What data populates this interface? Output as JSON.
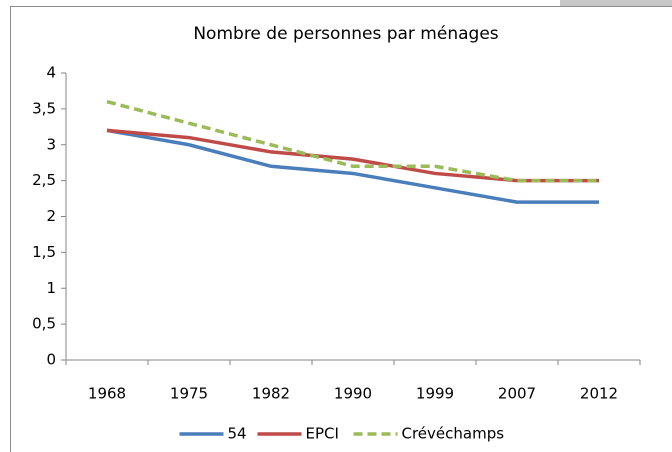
{
  "chart_data": {
    "type": "line",
    "title": "Nombre de personnes par ménages",
    "categories": [
      "1968",
      "1975",
      "1982",
      "1990",
      "1999",
      "2007",
      "2012"
    ],
    "series": [
      {
        "name": "54",
        "color": "#4a7ebb",
        "values": [
          3.2,
          3.0,
          2.7,
          2.6,
          2.4,
          2.2,
          2.2
        ]
      },
      {
        "name": "EPCI",
        "color": "#be4b48",
        "values": [
          3.2,
          3.1,
          2.9,
          2.8,
          2.6,
          2.5,
          2.5
        ]
      },
      {
        "name": "Crévéchamps",
        "color": "#9bbb59",
        "dashed": true,
        "values": [
          3.6,
          3.3,
          3.0,
          2.7,
          2.7,
          2.5,
          2.5
        ]
      }
    ],
    "ylim": [
      0,
      4
    ],
    "yticks": [
      0,
      {
        "value": 0.5,
        "label": "0,5"
      },
      1,
      {
        "value": 1.5,
        "label": "1,5"
      },
      2,
      {
        "value": 2.5,
        "label": "2,5"
      },
      3,
      {
        "value": 3.5,
        "label": "3,5"
      },
      4
    ],
    "grid": false,
    "legend": "bottom"
  }
}
